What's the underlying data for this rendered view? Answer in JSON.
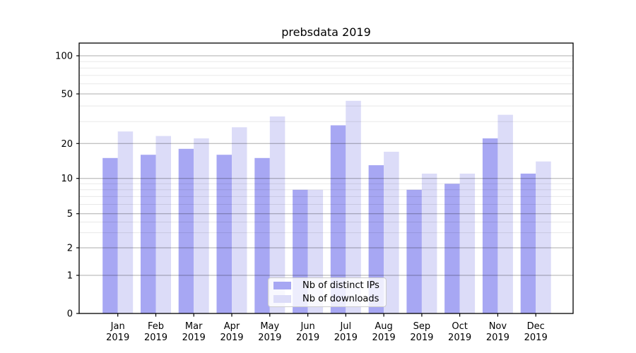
{
  "chart_data": {
    "type": "bar",
    "title": "prebsdata 2019",
    "categories": [
      "Jan",
      "Feb",
      "Mar",
      "Apr",
      "May",
      "Jun",
      "Jul",
      "Aug",
      "Sep",
      "Oct",
      "Nov",
      "Dec"
    ],
    "year_label": "2019",
    "series": [
      {
        "name": "Nb of distinct IPs",
        "color": "#a7a7f3",
        "values": [
          15,
          16,
          18,
          16,
          15,
          8,
          28,
          13,
          8,
          9,
          22,
          11
        ]
      },
      {
        "name": "Nb of downloads",
        "color": "#dcdcf8",
        "values": [
          25,
          23,
          22,
          27,
          33,
          8,
          44,
          17,
          11,
          11,
          34,
          14
        ]
      }
    ],
    "yscale": "symlog",
    "yticks": [
      0,
      1,
      2,
      5,
      10,
      20,
      50,
      100
    ],
    "yticks_minor": [
      3,
      4,
      6,
      7,
      8,
      9,
      30,
      40,
      60,
      70,
      80,
      90
    ],
    "ylim": [
      0,
      126
    ],
    "grid": "on",
    "legend_position": "lower center"
  },
  "colors": {
    "major_grid": "rgba(0,0,0,0.32)",
    "minor_grid": "rgba(0,0,0,0.09)",
    "spine": "#000000",
    "text": "#000000"
  }
}
